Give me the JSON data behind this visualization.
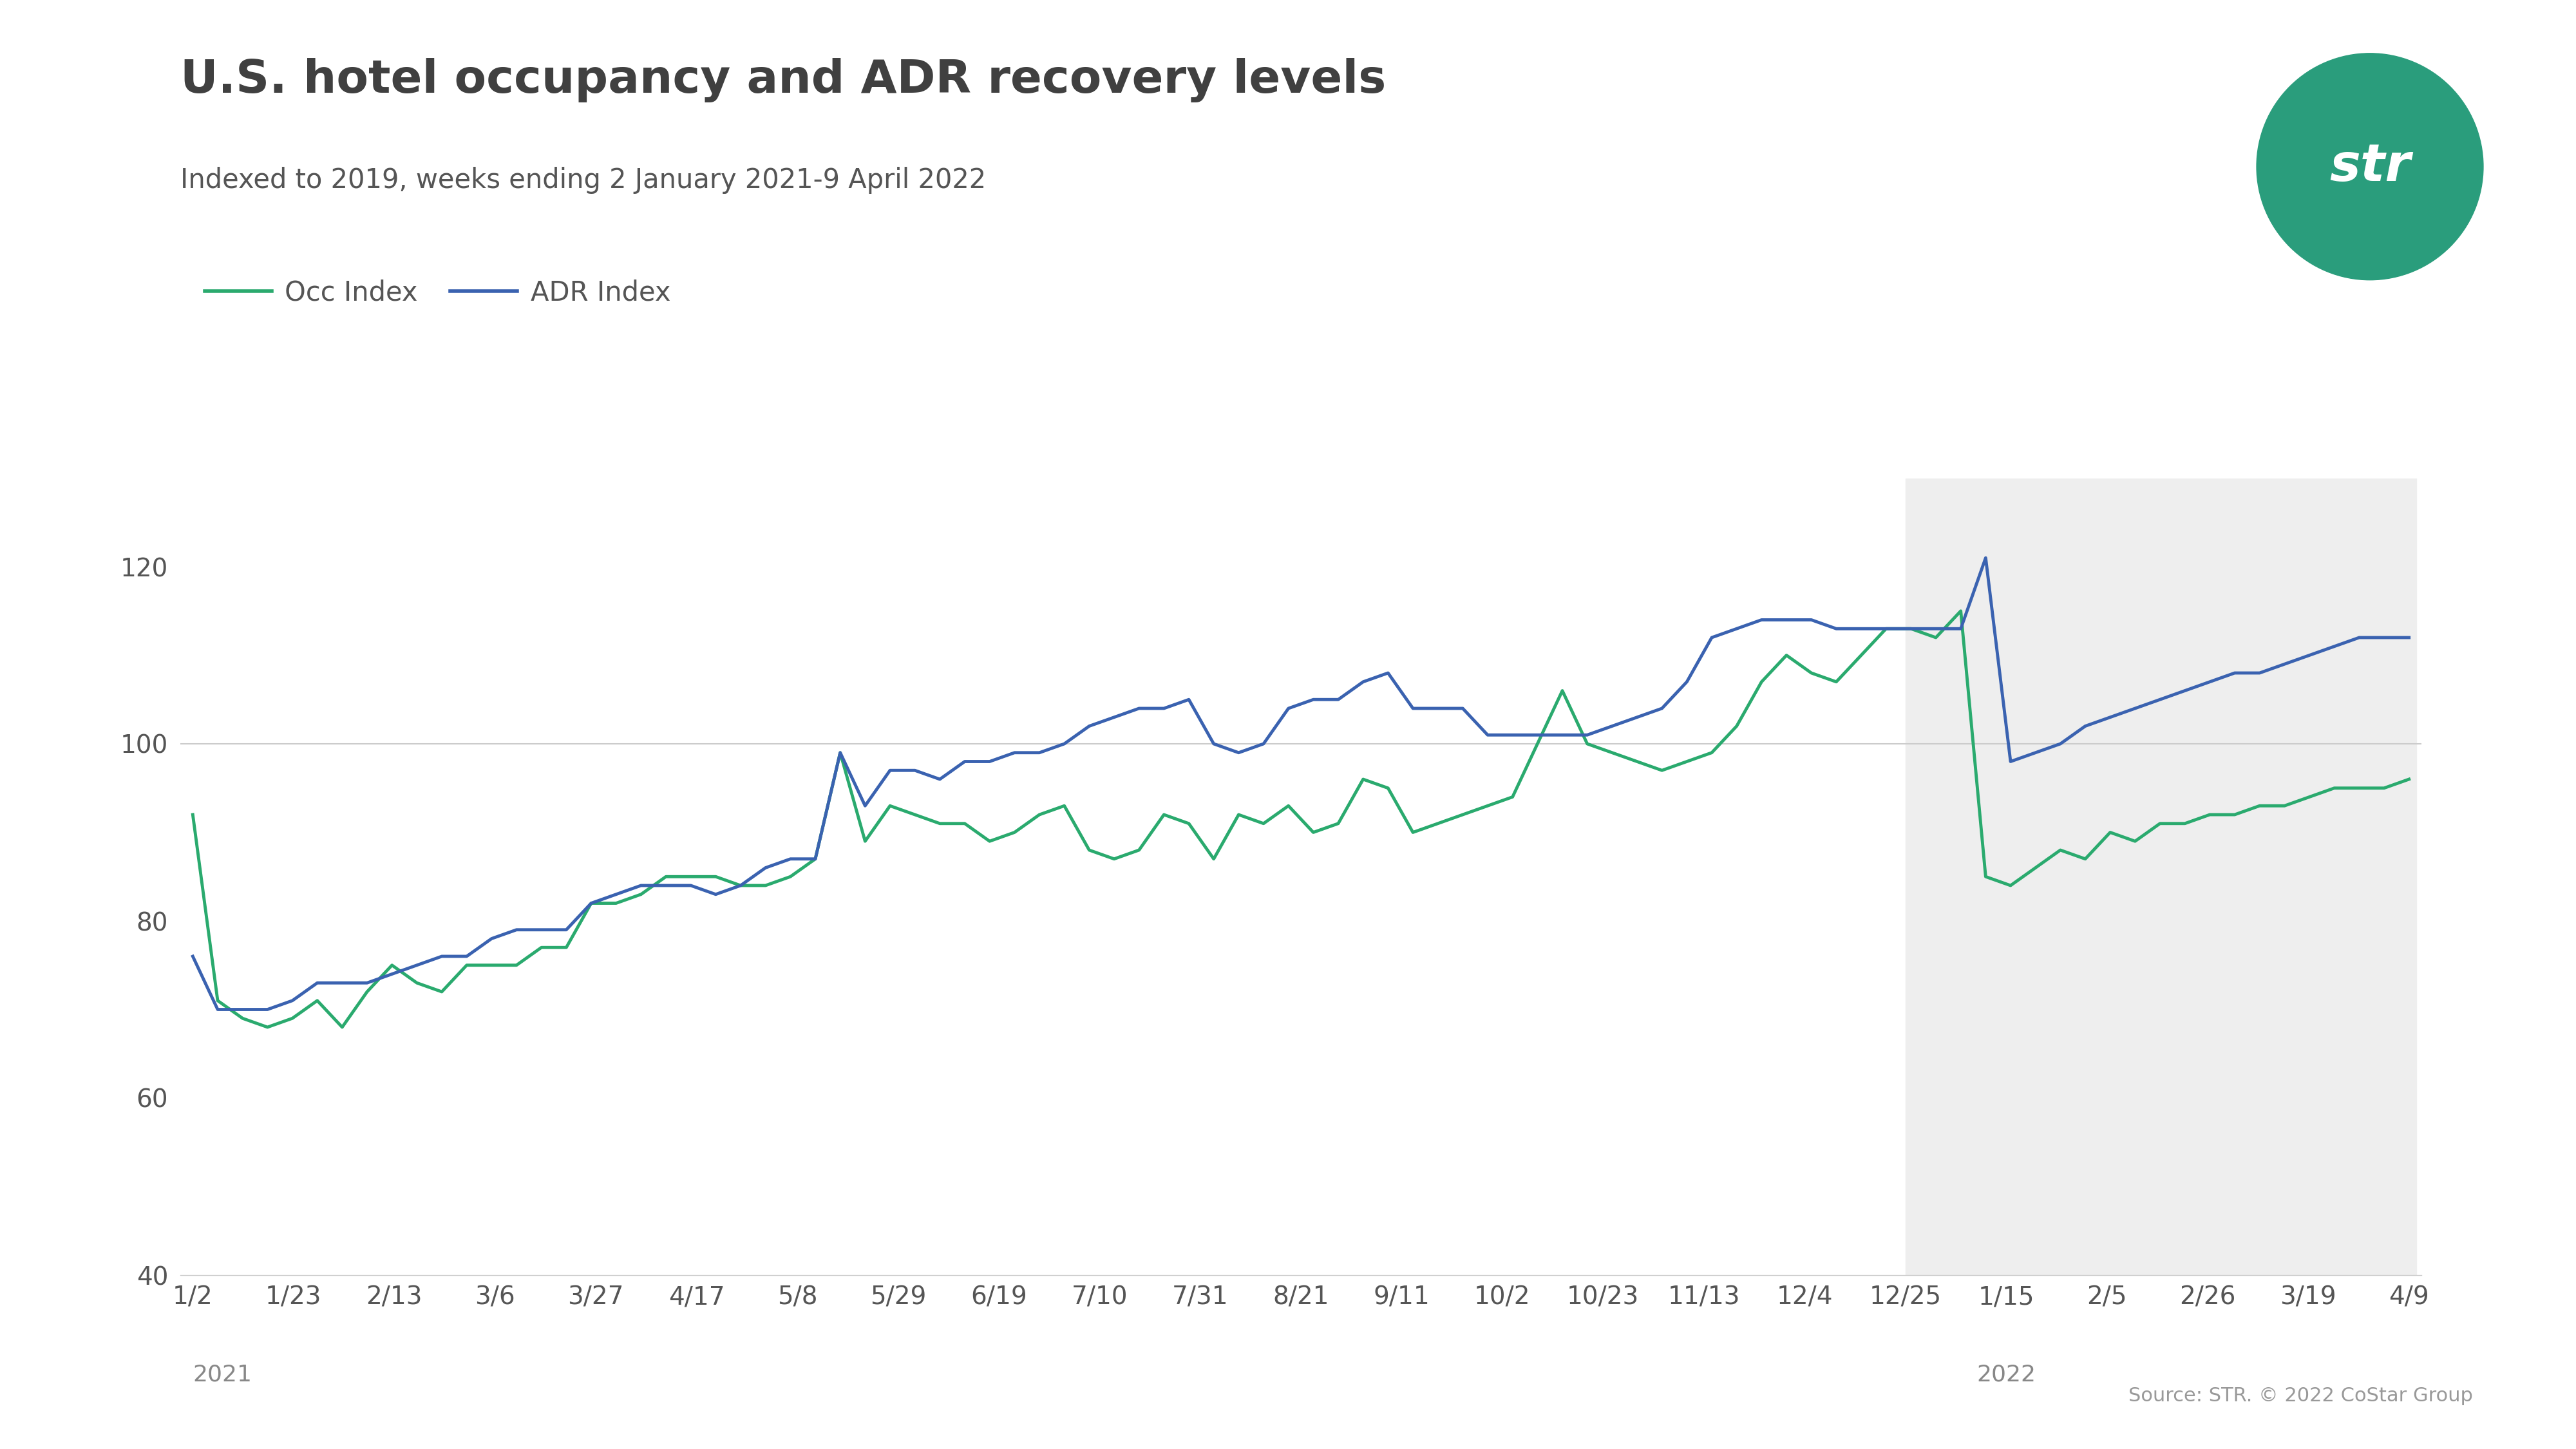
{
  "title": "U.S. hotel occupancy and ADR recovery levels",
  "subtitle": "Indexed to 2019, weeks ending 2 January 2021-9 April 2022",
  "source_text": "Source: STR. © 2022 CoStar Group",
  "occ_label": "Occ Index",
  "adr_label": "ADR Index",
  "occ_color": "#2aaa6e",
  "adr_color": "#3a62b0",
  "background_color": "#ffffff",
  "shade_color": "#eeeeee",
  "ylim": [
    40,
    130
  ],
  "yticks": [
    40,
    60,
    80,
    100,
    120
  ],
  "xtick_labels": [
    "1/2",
    "1/23",
    "2/13",
    "3/6",
    "3/27",
    "4/17",
    "5/8",
    "5/29",
    "6/19",
    "7/10",
    "7/31",
    "8/21",
    "9/11",
    "10/2",
    "10/23",
    "11/13",
    "12/4",
    "12/25",
    "1/15",
    "2/5",
    "2/26",
    "3/19",
    "4/9"
  ],
  "year_label_2021": "2021",
  "year_label_2022": "2022",
  "title_color": "#404040",
  "subtitle_color": "#555555",
  "tick_color": "#555555",
  "year_color": "#888888",
  "source_color": "#999999",
  "logo_color": "#2a9d7c",
  "title_fontsize": 52,
  "subtitle_fontsize": 30,
  "tick_fontsize": 28,
  "legend_fontsize": 30,
  "source_fontsize": 22,
  "year_fontsize": 26,
  "logo_fontsize": 58,
  "occ_values": [
    92,
    71,
    69,
    68,
    69,
    71,
    68,
    72,
    75,
    73,
    72,
    75,
    75,
    75,
    77,
    77,
    82,
    82,
    83,
    85,
    85,
    85,
    84,
    84,
    85,
    87,
    99,
    89,
    93,
    92,
    91,
    91,
    89,
    90,
    92,
    93,
    88,
    87,
    88,
    92,
    91,
    87,
    92,
    91,
    93,
    90,
    91,
    96,
    95,
    90,
    91,
    92,
    93,
    94,
    100,
    106,
    100,
    99,
    98,
    97,
    98,
    99,
    102,
    107,
    110,
    108,
    107,
    110,
    113,
    113,
    112,
    115,
    85,
    84,
    86,
    88,
    87,
    90,
    89,
    91,
    91,
    92,
    92,
    93,
    93,
    94,
    95,
    95,
    95,
    96
  ],
  "adr_values": [
    76,
    70,
    70,
    70,
    71,
    73,
    73,
    73,
    74,
    75,
    76,
    76,
    78,
    79,
    79,
    79,
    82,
    83,
    84,
    84,
    84,
    83,
    84,
    86,
    87,
    87,
    99,
    93,
    97,
    97,
    96,
    98,
    98,
    99,
    99,
    100,
    102,
    103,
    104,
    104,
    105,
    100,
    99,
    100,
    104,
    105,
    105,
    107,
    108,
    104,
    104,
    104,
    101,
    101,
    101,
    101,
    101,
    102,
    103,
    104,
    107,
    112,
    113,
    114,
    114,
    114,
    113,
    113,
    113,
    113,
    113,
    113,
    121,
    98,
    99,
    100,
    102,
    103,
    104,
    105,
    106,
    107,
    108,
    108,
    109,
    110,
    111,
    112,
    112,
    112
  ]
}
